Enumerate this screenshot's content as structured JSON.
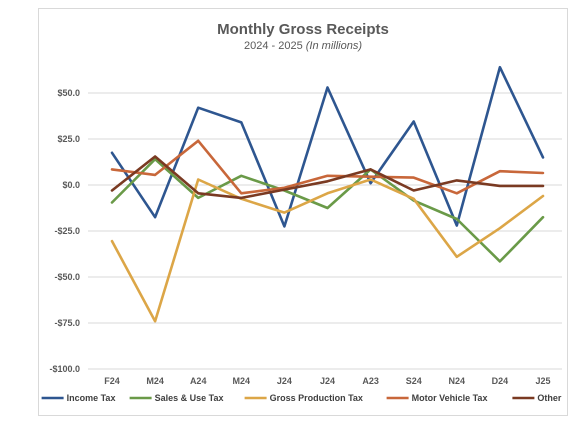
{
  "chart_data": {
    "type": "line",
    "title": "Monthly Gross Receipts",
    "subtitle_main": "2024 - 2025",
    "subtitle_unit": "(In millions)",
    "categories": [
      "F24",
      "M24",
      "A24",
      "M24",
      "J24",
      "J24",
      "A23",
      "S24",
      "N24",
      "D24",
      "J25"
    ],
    "ylim": [
      -100,
      60
    ],
    "y_ticks": [
      50,
      25,
      0,
      -25,
      -50,
      -75,
      -100
    ],
    "y_tick_labels": [
      "$50.0",
      "$25.0",
      "$0.0",
      "-$25.0",
      "-$50.0",
      "-$75.0",
      "-$100.0"
    ],
    "grid": true,
    "legend_position": "bottom",
    "series": [
      {
        "name": "Income Tax",
        "color": "#2e5690",
        "values": [
          17.5,
          -17.5,
          42,
          34,
          -22.5,
          53,
          1,
          34.5,
          -22,
          64,
          15
        ]
      },
      {
        "name": "Sales & Use Tax",
        "color": "#6a9a48",
        "values": [
          -9.5,
          14,
          -7,
          5,
          -3,
          -12.5,
          8.5,
          -8.5,
          -18.5,
          -41.5,
          -17.5
        ]
      },
      {
        "name": "Gross Production Tax",
        "color": "#dca647",
        "values": [
          -30.5,
          -74,
          3,
          -7.5,
          -15,
          -4.5,
          3,
          -7.5,
          -39,
          -23.5,
          -6
        ]
      },
      {
        "name": "Motor Vehicle Tax",
        "color": "#c8673a",
        "values": [
          8.5,
          5.5,
          24,
          -4.5,
          -1.5,
          5,
          4.5,
          4,
          -4.5,
          7.5,
          6.5
        ]
      },
      {
        "name": "Other",
        "color": "#7a3a22",
        "values": [
          -3,
          15.5,
          -4.5,
          -7,
          -2.5,
          2,
          8.5,
          -3,
          2.5,
          -0.5,
          -0.5
        ]
      }
    ]
  }
}
